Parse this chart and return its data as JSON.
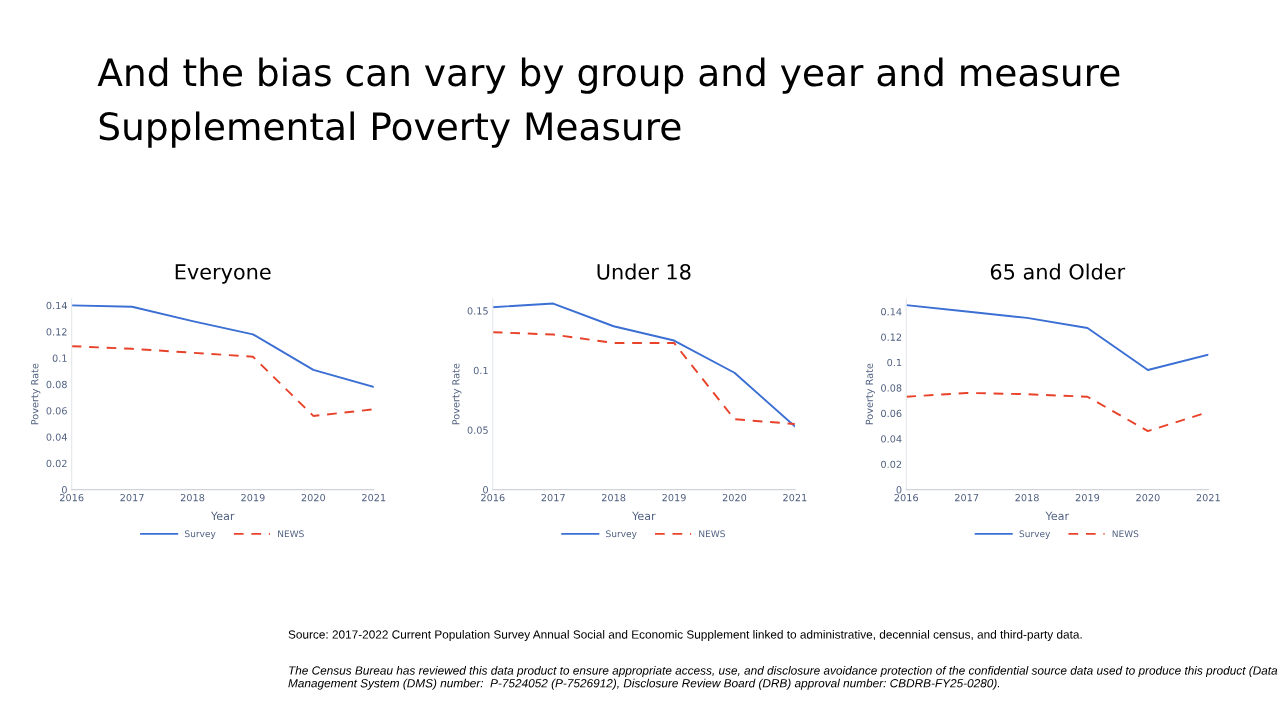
{
  "chart_data": [
    {
      "type": "line",
      "title": "Everyone",
      "xlabel": "Year",
      "ylabel": "Poverty Rate",
      "x": [
        2016,
        2017,
        2018,
        2019,
        2020,
        2021
      ],
      "series": [
        {
          "name": "Survey",
          "color": "#3b6fd4",
          "line_style": "solid",
          "values": [
            0.14,
            0.139,
            0.128,
            0.118,
            0.091,
            0.078
          ]
        },
        {
          "name": "NEWS",
          "color": "#e8432a",
          "line_style": "dashed",
          "values": [
            0.109,
            0.107,
            0.104,
            0.101,
            0.056,
            0.061
          ]
        }
      ],
      "xlim": [
        2016,
        2021
      ],
      "xticks": [
        2016,
        2017,
        2018,
        2019,
        2020,
        2021
      ],
      "ylim": [
        0,
        0.145
      ],
      "yticks": [
        0,
        0.02,
        0.04,
        0.06,
        0.08,
        0.1,
        0.12,
        0.14
      ],
      "grid": false,
      "legend": "bottom",
      "annotations": [
        "And the bias can vary by group and year and measure",
        "Supplemental Poverty Measure"
      ]
    },
    {
      "type": "line",
      "title": "Under 18",
      "xlabel": "Year",
      "ylabel": "Poverty Rate",
      "x": [
        2016,
        2017,
        2018,
        2019,
        2020,
        2021
      ],
      "series": [
        {
          "name": "Survey",
          "color": "#3b6fd4",
          "line_style": "solid",
          "values": [
            0.153,
            0.156,
            0.137,
            0.125,
            0.098,
            0.053
          ]
        },
        {
          "name": "NEWS",
          "color": "#e8432a",
          "line_style": "dashed",
          "values": [
            0.132,
            0.13,
            0.123,
            0.123,
            0.059,
            0.055
          ]
        }
      ],
      "xlim": [
        2016,
        2021
      ],
      "xticks": [
        2016,
        2017,
        2018,
        2019,
        2020,
        2021
      ],
      "ylim": [
        0,
        0.16
      ],
      "yticks": [
        0,
        0.05,
        0.1,
        0.15
      ],
      "grid": false,
      "legend": "bottom"
    },
    {
      "type": "line",
      "title": "65 and Older",
      "xlabel": "Year",
      "ylabel": "Poverty Rate",
      "x": [
        2016,
        2017,
        2018,
        2019,
        2020,
        2021
      ],
      "series": [
        {
          "name": "Survey",
          "color": "#3b6fd4",
          "line_style": "solid",
          "values": [
            0.145,
            0.14,
            0.135,
            0.127,
            0.094,
            0.106
          ]
        },
        {
          "name": "NEWS",
          "color": "#e8432a",
          "line_style": "dashed",
          "values": [
            0.073,
            0.076,
            0.075,
            0.073,
            0.046,
            0.061
          ]
        }
      ],
      "xlim": [
        2016,
        2021
      ],
      "xticks": [
        2016,
        2017,
        2018,
        2019,
        2020,
        2021
      ],
      "ylim": [
        0,
        0.15
      ],
      "yticks": [
        0,
        0.02,
        0.04,
        0.06,
        0.08,
        0.1,
        0.12,
        0.14
      ],
      "grid": false,
      "legend": "bottom",
      "annotations": [
        "Source: 2017-2022 Current Population Survey Annual Social and Economic Supplement linked to administrative, decennial census, and third-party data.",
        "The Census Bureau has reviewed this data product to ensure appropriate access, use, and disclosure avoidance protection of the confidential source data used to produce this product (Data Management System (DMS) number:  P-7524052 (P-7526912), Disclosure Review Board (DRB) approval number: CBDRB-FY25-0280)."
      ]
    }
  ]
}
